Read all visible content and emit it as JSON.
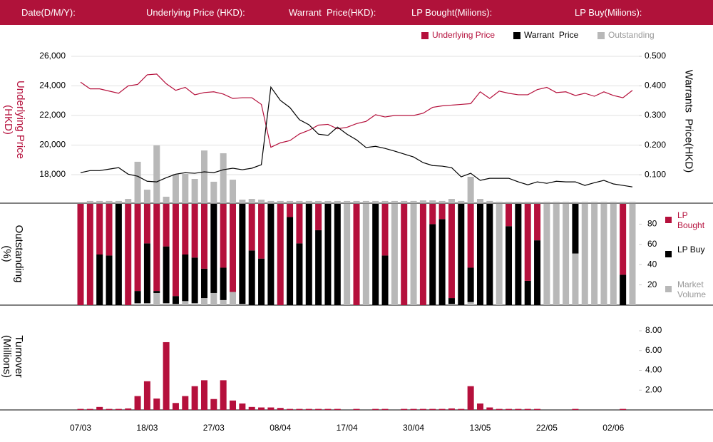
{
  "header": {
    "fields": [
      "Date(D/M/Y):",
      "Underlying Price (HKD):",
      "Warrant  Price(HKD):",
      "LP Bought(Milions):",
      "LP Buy(Milions):"
    ]
  },
  "chart_data": [
    {
      "type": "line",
      "y_label": "Underlying Price (HKD)",
      "y2_label": "Warrants  Price(HKD)",
      "ylim": [
        16070,
        26000
      ],
      "yticks": [
        {
          "value": 18000,
          "label": "18,000"
        },
        {
          "value": 20000,
          "label": "20,000"
        },
        {
          "value": 22000,
          "label": "22,000"
        },
        {
          "value": 24000,
          "label": "24,000"
        },
        {
          "value": 26000,
          "label": "26,000"
        }
      ],
      "y2lim": [
        0.004,
        0.5
      ],
      "y2ticks": [
        {
          "value": 0.1,
          "label": "0.100"
        },
        {
          "value": 0.2,
          "label": "0.200"
        },
        {
          "value": 0.3,
          "label": "0.300"
        },
        {
          "value": 0.4,
          "label": "0.400"
        },
        {
          "value": 0.5,
          "label": "0.500"
        }
      ],
      "y3lim": [
        0,
        100
      ],
      "grid": true,
      "series": [
        {
          "name": "Underlying Price",
          "color": "#b5103c",
          "axis": "y",
          "values": [
            24250,
            23800,
            23800,
            23650,
            23500,
            24000,
            24100,
            24750,
            24800,
            24150,
            23700,
            23900,
            23400,
            23550,
            23600,
            23450,
            23150,
            23200,
            23200,
            22750,
            19850,
            20150,
            20300,
            20750,
            21000,
            21350,
            21400,
            21100,
            21200,
            21450,
            21600,
            22050,
            21900,
            22000,
            22000,
            22000,
            22150,
            22550,
            22650,
            22700,
            22750,
            22800,
            23600,
            23150,
            23650,
            23500,
            23400,
            23400,
            23750,
            23900,
            23550,
            23600,
            23350,
            23500,
            23300,
            23600,
            23350,
            23200,
            23700
          ]
        },
        {
          "name": "Warrant  Price",
          "color": "#000000",
          "axis": "y2",
          "values": [
            0.107,
            0.114,
            0.114,
            0.119,
            0.124,
            0.102,
            0.095,
            0.078,
            0.076,
            0.09,
            0.102,
            0.107,
            0.105,
            0.11,
            0.107,
            0.117,
            0.122,
            0.117,
            0.122,
            0.134,
            0.396,
            0.351,
            0.327,
            0.286,
            0.269,
            0.237,
            0.233,
            0.261,
            0.237,
            0.218,
            0.192,
            0.196,
            0.189,
            0.18,
            0.17,
            0.16,
            0.141,
            0.131,
            0.129,
            0.124,
            0.093,
            0.105,
            0.081,
            0.088,
            0.088,
            0.088,
            0.076,
            0.066,
            0.076,
            0.071,
            0.078,
            0.076,
            0.076,
            0.064,
            0.073,
            0.081,
            0.069,
            0.064,
            0.059
          ]
        },
        {
          "name": "Outstanding",
          "color": "#b8b8b8",
          "axis": "y3",
          "type": "bar",
          "values": [
            0,
            1.5,
            1.5,
            1.5,
            1.5,
            2.9,
            28.2,
            9.2,
            39.3,
            4.4,
            19.9,
            19.9,
            16.5,
            35.9,
            14.6,
            34,
            16,
            2.4,
            2.9,
            2.4,
            1.5,
            1.5,
            1.5,
            1.5,
            1.5,
            1.5,
            1.5,
            1.5,
            1.5,
            1.5,
            1.5,
            1.5,
            1.5,
            1.5,
            1.5,
            1.5,
            1.9,
            1.9,
            1.5,
            2.9,
            1.5,
            18,
            2.9,
            1.5,
            1,
            1,
            1,
            1,
            1,
            1,
            1,
            1,
            1,
            1,
            1,
            1,
            1,
            1,
            1
          ]
        }
      ]
    },
    {
      "type": "stacked_bar",
      "y_label": "Outstanding (%)",
      "ylim": [
        0,
        100
      ],
      "yticks": [
        20,
        40,
        60,
        80
      ],
      "series": [
        {
          "name": "LP Bought",
          "color": "#b5103c",
          "values": [
            100,
            100,
            50,
            51,
            0,
            100,
            86,
            39,
            86,
            42,
            91,
            50,
            53,
            64,
            0,
            63,
            87,
            0,
            46,
            54,
            0,
            100,
            13,
            39,
            0,
            26,
            0,
            0,
            0,
            100,
            0,
            0,
            51,
            0,
            100,
            0,
            100,
            20,
            15,
            93,
            0,
            63,
            0,
            0,
            0,
            22,
            0,
            76,
            36,
            0,
            0,
            0,
            0,
            0,
            0,
            0,
            0,
            70,
            0
          ]
        },
        {
          "name": "LP Buy",
          "color": "#000000",
          "values": [
            0,
            0,
            50,
            49,
            100,
            0,
            12,
            59,
            2,
            56,
            8,
            46,
            45,
            29,
            88,
            32,
            0,
            99,
            54,
            46,
            100,
            0,
            87,
            61,
            100,
            74,
            100,
            100,
            0,
            0,
            0,
            100,
            49,
            0,
            0,
            0,
            0,
            80,
            85,
            6,
            100,
            34,
            100,
            100,
            0,
            78,
            100,
            24,
            64,
            0,
            0,
            0,
            49,
            0,
            0,
            0,
            0,
            30,
            0
          ]
        },
        {
          "name": "Market Volume",
          "color": "#b8b8b8",
          "values": [
            0,
            0,
            0,
            0,
            0,
            0,
            2,
            2,
            12,
            2,
            1,
            4,
            2,
            7,
            12,
            5,
            13,
            1,
            0,
            0,
            0,
            0,
            0,
            0,
            0,
            0,
            0,
            0,
            100,
            0,
            100,
            0,
            0,
            100,
            0,
            100,
            0,
            0,
            0,
            1,
            0,
            3,
            0,
            0,
            100,
            0,
            0,
            0,
            0,
            100,
            100,
            100,
            51,
            100,
            100,
            100,
            100,
            0,
            100
          ]
        }
      ]
    },
    {
      "type": "bar",
      "y_label": "Turnover (Millions)",
      "color": "#b5103c",
      "ylim": [
        0,
        8.65
      ],
      "yticks": [
        {
          "value": 2,
          "label": "2.00"
        },
        {
          "value": 4,
          "label": "4.00"
        },
        {
          "value": 6,
          "label": "6.00"
        },
        {
          "value": 8,
          "label": "8.00"
        }
      ],
      "categories": [
        "07/03",
        null,
        null,
        null,
        null,
        null,
        null,
        "18/03",
        null,
        null,
        null,
        null,
        null,
        null,
        "27/03",
        null,
        null,
        null,
        null,
        null,
        null,
        "08/04",
        null,
        null,
        null,
        null,
        null,
        null,
        "17/04",
        null,
        null,
        null,
        null,
        null,
        null,
        "30/04",
        null,
        null,
        null,
        null,
        null,
        null,
        "13/05",
        null,
        null,
        null,
        null,
        null,
        null,
        "22/05",
        null,
        null,
        null,
        null,
        null,
        null,
        "02/06",
        null,
        null
      ],
      "values": [
        0.1,
        0.1,
        0.3,
        0.1,
        0.1,
        0.15,
        1.4,
        2.9,
        1.15,
        6.85,
        0.7,
        1.4,
        2.4,
        3,
        1.1,
        3,
        0.95,
        0.65,
        0.3,
        0.25,
        0.25,
        0.2,
        0.1,
        0.1,
        0.1,
        0.1,
        0.1,
        0.1,
        0,
        0.1,
        0,
        0.1,
        0.1,
        0,
        0.1,
        0.1,
        0.1,
        0.1,
        0.1,
        0.15,
        0.1,
        2.4,
        0.65,
        0.25,
        0.1,
        0.1,
        0.1,
        0.1,
        0.1,
        0,
        0,
        0,
        0.1,
        0,
        0,
        0,
        0,
        0.1,
        0
      ]
    }
  ]
}
